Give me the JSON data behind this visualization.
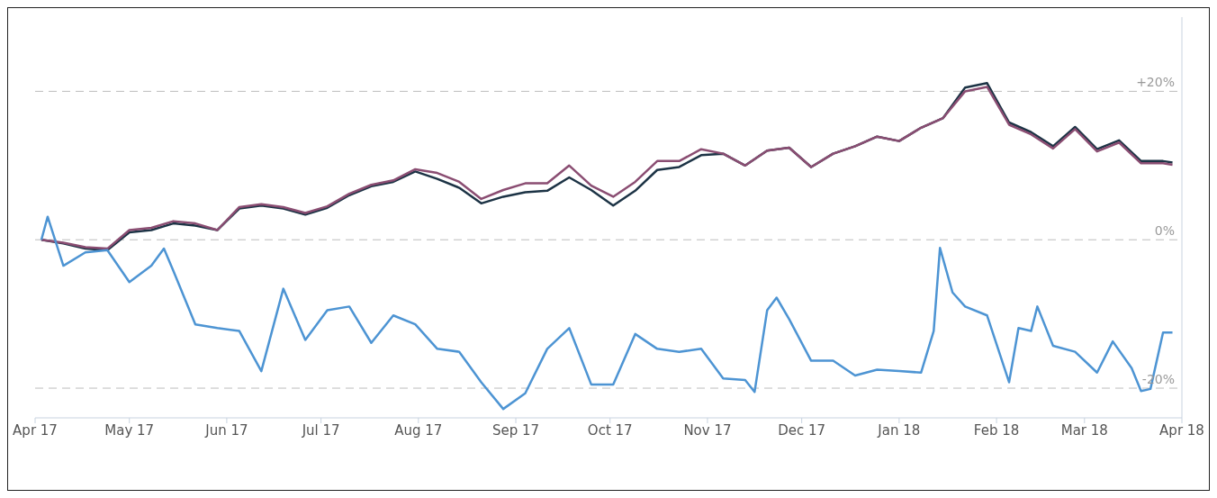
{
  "chart_data": {
    "type": "line",
    "x": [
      "2017-04-03",
      "2017-04-10",
      "2017-04-17",
      "2017-04-24",
      "2017-05-01",
      "2017-05-08",
      "2017-05-15",
      "2017-05-22",
      "2017-05-29",
      "2017-06-05",
      "2017-06-12",
      "2017-06-19",
      "2017-06-26",
      "2017-07-03",
      "2017-07-10",
      "2017-07-17",
      "2017-07-24",
      "2017-07-31",
      "2017-08-07",
      "2017-08-14",
      "2017-08-21",
      "2017-08-28",
      "2017-09-04",
      "2017-09-11",
      "2017-09-18",
      "2017-09-25",
      "2017-10-02",
      "2017-10-09",
      "2017-10-16",
      "2017-10-23",
      "2017-10-30",
      "2017-11-06",
      "2017-11-13",
      "2017-11-20",
      "2017-11-27",
      "2017-12-04",
      "2017-12-11",
      "2017-12-18",
      "2017-12-25",
      "2018-01-01",
      "2018-01-08",
      "2018-01-15",
      "2018-01-22",
      "2018-01-29",
      "2018-02-05",
      "2018-02-12",
      "2018-02-19",
      "2018-02-26",
      "2018-03-05",
      "2018-03-12",
      "2018-03-19",
      "2018-03-26",
      "2018-03-29"
    ],
    "series": [
      {
        "color": "#1c3345",
        "values": [
          0,
          -0.5,
          -1.2,
          -1.4,
          1.0,
          1.3,
          2.2,
          1.9,
          1.3,
          4.2,
          4.6,
          4.2,
          3.4,
          4.3,
          6.0,
          7.2,
          7.8,
          9.2,
          8.2,
          7.0,
          4.9,
          5.8,
          6.4,
          6.6,
          8.4,
          6.7,
          4.6,
          6.6,
          9.4,
          9.8,
          11.4,
          11.6,
          10.0,
          12.0,
          12.4,
          9.8,
          11.6,
          12.6,
          13.9,
          13.3,
          15.1,
          16.4,
          20.5,
          21.1,
          15.8,
          14.5,
          12.6,
          15.2,
          12.2,
          13.4,
          10.6,
          10.6,
          10.4
        ]
      },
      {
        "color": "#8a4d72",
        "values": [
          0,
          -0.4,
          -1.0,
          -1.2,
          1.3,
          1.6,
          2.5,
          2.2,
          1.3,
          4.4,
          4.8,
          4.4,
          3.6,
          4.5,
          6.2,
          7.4,
          8.0,
          9.5,
          9.0,
          7.8,
          5.5,
          6.7,
          7.6,
          7.6,
          10.0,
          7.3,
          5.8,
          7.8,
          10.6,
          10.6,
          12.2,
          11.6,
          10.0,
          12.0,
          12.4,
          9.8,
          11.6,
          12.6,
          13.9,
          13.3,
          15.1,
          16.4,
          20.0,
          20.6,
          15.5,
          14.2,
          12.3,
          14.9,
          11.9,
          13.1,
          10.3,
          10.3,
          10.1
        ]
      },
      {
        "color": "#4d94d3",
        "x": [
          "2017-04-03",
          "2017-04-05",
          "2017-04-10",
          "2017-04-17",
          "2017-04-24",
          "2017-05-01",
          "2017-05-08",
          "2017-05-12",
          "2017-05-15",
          "2017-05-22",
          "2017-05-29",
          "2017-06-05",
          "2017-06-12",
          "2017-06-19",
          "2017-06-26",
          "2017-07-03",
          "2017-07-10",
          "2017-07-17",
          "2017-07-24",
          "2017-07-31",
          "2017-08-07",
          "2017-08-14",
          "2017-08-21",
          "2017-08-28",
          "2017-09-04",
          "2017-09-11",
          "2017-09-18",
          "2017-09-25",
          "2017-10-02",
          "2017-10-09",
          "2017-10-16",
          "2017-10-23",
          "2017-10-30",
          "2017-11-06",
          "2017-11-13",
          "2017-11-16",
          "2017-11-20",
          "2017-11-23",
          "2017-11-27",
          "2017-12-04",
          "2017-12-11",
          "2017-12-18",
          "2017-12-25",
          "2018-01-01",
          "2018-01-08",
          "2018-01-12",
          "2018-01-14",
          "2018-01-18",
          "2018-01-22",
          "2018-01-29",
          "2018-02-05",
          "2018-02-08",
          "2018-02-12",
          "2018-02-14",
          "2018-02-19",
          "2018-02-26",
          "2018-03-05",
          "2018-03-10",
          "2018-03-16",
          "2018-03-19",
          "2018-03-22",
          "2018-03-26",
          "2018-03-29"
        ],
        "values": [
          0,
          3.1,
          -3.5,
          -1.7,
          -1.4,
          -5.7,
          -3.5,
          -1.2,
          -4.2,
          -11.4,
          -11.9,
          -12.3,
          -17.7,
          -6.6,
          -13.5,
          -9.5,
          -9.0,
          -13.9,
          -10.2,
          -11.4,
          -14.7,
          -15.1,
          -19.2,
          -22.8,
          -20.7,
          -14.7,
          -11.9,
          -19.5,
          -19.5,
          -12.7,
          -14.7,
          -15.1,
          -14.7,
          -18.7,
          -18.9,
          -20.5,
          -9.5,
          -7.8,
          -10.7,
          -16.3,
          -16.3,
          -18.3,
          -17.5,
          -17.7,
          -17.9,
          -12.3,
          -1.1,
          -7.1,
          -9.0,
          -10.2,
          -19.2,
          -11.9,
          -12.3,
          -9.0,
          -14.3,
          -15.1,
          -17.9,
          -13.7,
          -17.3,
          -20.4,
          -20.1,
          -12.5,
          -12.5
        ]
      }
    ],
    "xlim": [
      "2017-04-01",
      "2018-04-01"
    ],
    "xticks": [
      {
        "value": "2017-04-01",
        "label": "Apr 17"
      },
      {
        "value": "2017-05-01",
        "label": "May 17"
      },
      {
        "value": "2017-06-01",
        "label": "Jun 17"
      },
      {
        "value": "2017-07-01",
        "label": "Jul 17"
      },
      {
        "value": "2017-08-01",
        "label": "Aug 17"
      },
      {
        "value": "2017-09-01",
        "label": "Sep 17"
      },
      {
        "value": "2017-10-01",
        "label": "Oct 17"
      },
      {
        "value": "2017-11-01",
        "label": "Nov 17"
      },
      {
        "value": "2017-12-01",
        "label": "Dec 17"
      },
      {
        "value": "2018-01-01",
        "label": "Jan 18"
      },
      {
        "value": "2018-02-01",
        "label": "Feb 18"
      },
      {
        "value": "2018-03-01",
        "label": "Mar 18"
      },
      {
        "value": "2018-04-01",
        "label": "Apr 18"
      }
    ],
    "ylim": [
      -24,
      30
    ],
    "yticks": [
      {
        "value": -20,
        "label": "-20%"
      },
      {
        "value": 0,
        "label": "0%"
      },
      {
        "value": 20,
        "label": "+20%"
      }
    ],
    "grid": "y",
    "line_style": "solid",
    "marker": "none"
  }
}
